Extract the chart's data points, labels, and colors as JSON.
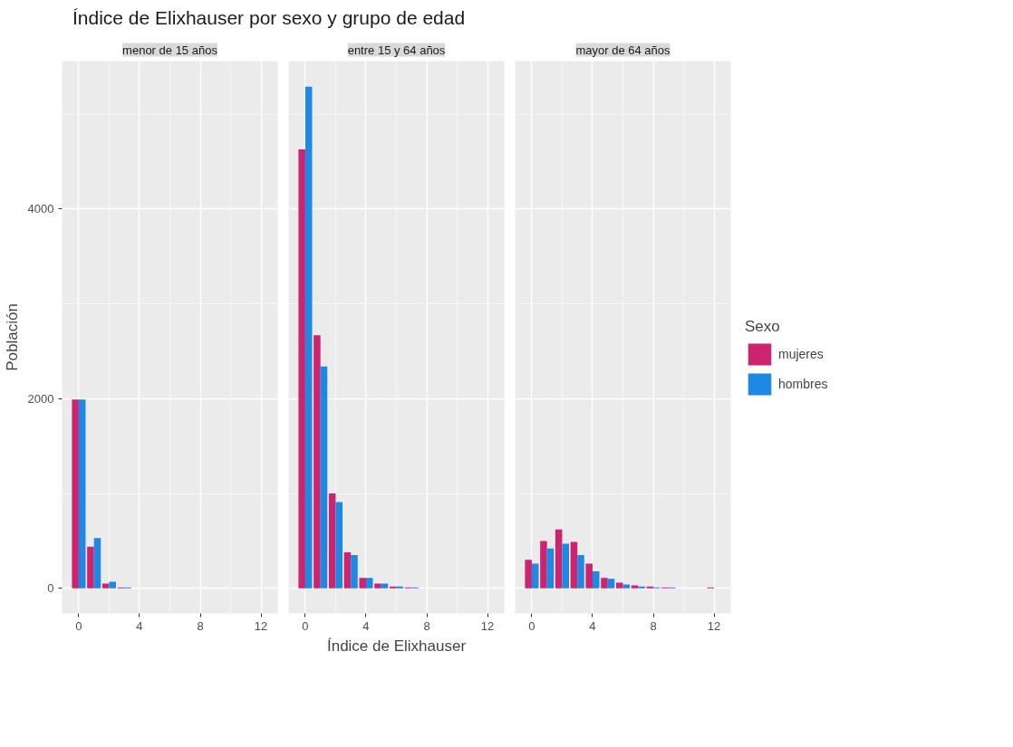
{
  "chart_data": [
    {
      "type": "bar",
      "title": "Índice de Elixhauser por sexo y grupo de edad",
      "subtitle": "menor de 15 años",
      "ylabel": "Población",
      "x": [
        0,
        1,
        2,
        3,
        4,
        5,
        6,
        7,
        8,
        9,
        10,
        11,
        12
      ],
      "xlim": [
        -1.1,
        13.1
      ],
      "xticks": [
        0,
        4,
        8,
        12
      ],
      "ylim": [
        -265,
        5560
      ],
      "yticks": [
        0,
        2000,
        4000
      ],
      "grid": true,
      "series": [
        {
          "color": "#cc2470",
          "values": [
            1990,
            440,
            50,
            10,
            0,
            0,
            0,
            0,
            0,
            0,
            0,
            0,
            0
          ]
        },
        {
          "color": "#1e88e5",
          "values": [
            1990,
            530,
            70,
            10,
            0,
            0,
            0,
            0,
            0,
            0,
            0,
            0,
            0
          ]
        }
      ]
    },
    {
      "type": "bar",
      "subtitle": "entre 15 y 64 años",
      "xlabel": "Índice de Elixhauser",
      "x": [
        0,
        1,
        2,
        3,
        4,
        5,
        6,
        7,
        8,
        9,
        10,
        11,
        12
      ],
      "xlim": [
        -1.1,
        13.1
      ],
      "xticks": [
        0,
        4,
        8,
        12
      ],
      "ylim": [
        -265,
        5560
      ],
      "yticks": [
        0,
        2000,
        4000
      ],
      "grid": true,
      "tick_labels": "x",
      "series": [
        {
          "color": "#cc2470",
          "values": [
            4630,
            2670,
            1000,
            380,
            110,
            50,
            20,
            10,
            0,
            0,
            0,
            0,
            0
          ]
        },
        {
          "color": "#1e88e5",
          "values": [
            5290,
            2340,
            910,
            350,
            110,
            50,
            20,
            10,
            0,
            0,
            0,
            0,
            0
          ]
        }
      ]
    },
    {
      "type": "bar",
      "subtitle": "mayor de 64 años",
      "legend_title": "Sexo",
      "legend": "right",
      "x": [
        0,
        1,
        2,
        3,
        4,
        5,
        6,
        7,
        8,
        9,
        10,
        11,
        12
      ],
      "xlim": [
        -1.1,
        13.1
      ],
      "xticks": [
        0,
        4,
        8,
        12
      ],
      "ylim": [
        -265,
        5560
      ],
      "yticks": [
        0,
        2000,
        4000
      ],
      "grid": true,
      "tick_labels": "x",
      "series": [
        {
          "name": "mujeres",
          "color": "#cc2470",
          "values": [
            300,
            500,
            620,
            490,
            260,
            110,
            60,
            30,
            20,
            10,
            0,
            0,
            10
          ]
        },
        {
          "name": "hombres",
          "color": "#1e88e5",
          "values": [
            260,
            420,
            470,
            350,
            180,
            100,
            40,
            20,
            10,
            10,
            0,
            0,
            0
          ]
        }
      ]
    }
  ]
}
